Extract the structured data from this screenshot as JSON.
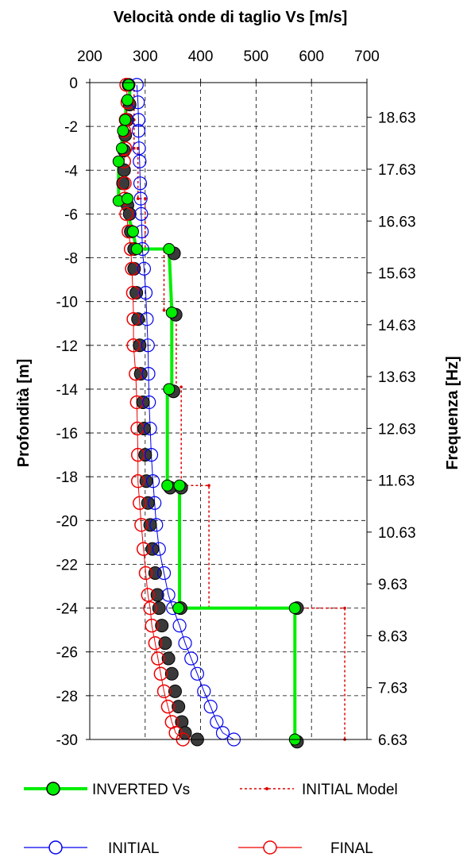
{
  "chart_data": {
    "type": "scatter",
    "title": "Velocità onde di taglio Vs [m/s]",
    "xlabel": "Velocità onde di taglio Vs [m/s]",
    "ylabel": "Profondità [m]",
    "y2label": "Frequenza [Hz]",
    "xlim": [
      200,
      700
    ],
    "ylim": [
      -30,
      0
    ],
    "x_ticks": [
      200,
      300,
      400,
      500,
      600,
      700
    ],
    "y_ticks": [
      0,
      -2,
      -4,
      -6,
      -8,
      -10,
      -12,
      -14,
      -16,
      -18,
      -20,
      -22,
      -24,
      -26,
      -28,
      -30
    ],
    "y2_ticks": [
      18.63,
      17.63,
      16.63,
      15.63,
      14.63,
      13.63,
      12.63,
      11.63,
      10.63,
      9.63,
      8.63,
      7.63,
      6.63
    ],
    "y2lim": [
      6.63,
      19.3
    ],
    "grid": true,
    "inverted_vs": {
      "name": "INVERTED Vs",
      "color": "#00ee00",
      "points": [
        [
          270,
          -0.1
        ],
        [
          268,
          -0.8
        ],
        [
          264,
          -1.7
        ],
        [
          260,
          -2.2
        ],
        [
          258,
          -3.0
        ],
        [
          252,
          -3.6
        ],
        [
          252,
          -5.4
        ],
        [
          268,
          -5.3
        ],
        [
          278,
          -6.8
        ],
        [
          285,
          -7.6
        ],
        [
          343,
          -7.6
        ],
        [
          348,
          -10.5
        ],
        [
          343,
          -14.0
        ],
        [
          340,
          -18.4
        ],
        [
          362,
          -18.4
        ],
        [
          360,
          -24.0
        ],
        [
          570,
          -24.0
        ],
        [
          570,
          -30.0
        ]
      ],
      "path": [
        [
          272,
          0
        ],
        [
          272,
          -0.9
        ],
        [
          265,
          -0.9
        ],
        [
          265,
          -1.7
        ],
        [
          258,
          -1.7
        ],
        [
          258,
          -2.2
        ],
        [
          258,
          -3.6
        ],
        [
          252,
          -3.6
        ],
        [
          252,
          -5.3
        ],
        [
          265,
          -5.3
        ],
        [
          268,
          -6.0
        ],
        [
          278,
          -6.8
        ],
        [
          284,
          -7.6
        ],
        [
          343,
          -7.6
        ],
        [
          348,
          -10.4
        ],
        [
          348,
          -14.0
        ],
        [
          340,
          -14.0
        ],
        [
          340,
          -18.4
        ],
        [
          362,
          -18.4
        ],
        [
          362,
          -24.0
        ],
        [
          570,
          -24.0
        ],
        [
          570,
          -30.0
        ]
      ]
    },
    "initial_model": {
      "name": "INITIAL Model",
      "color": "#dd0000",
      "path": [
        [
          280,
          -0.1
        ],
        [
          280,
          -1.7
        ],
        [
          280,
          -3.0
        ],
        [
          287,
          -3.0
        ],
        [
          287,
          -5.3
        ],
        [
          300,
          -5.3
        ],
        [
          300,
          -7.6
        ],
        [
          334,
          -7.6
        ],
        [
          334,
          -10.4
        ],
        [
          356,
          -10.4
        ],
        [
          356,
          -13.9
        ],
        [
          365,
          -13.9
        ],
        [
          365,
          -18.4
        ],
        [
          415,
          -18.4
        ],
        [
          415,
          -24.0
        ],
        [
          660,
          -24.0
        ],
        [
          660,
          -30.0
        ]
      ]
    },
    "initial": {
      "name": "INITIAL",
      "color": "#0000ee",
      "points": [
        [
          285,
          -0.1
        ],
        [
          287,
          -0.9
        ],
        [
          288,
          -1.7
        ],
        [
          288,
          -2.2
        ],
        [
          289,
          -3.0
        ],
        [
          290,
          -3.6
        ],
        [
          291,
          -4.6
        ],
        [
          292,
          -5.3
        ],
        [
          293,
          -6.0
        ],
        [
          294,
          -6.8
        ],
        [
          295,
          -7.6
        ],
        [
          298,
          -8.5
        ],
        [
          301,
          -9.6
        ],
        [
          303,
          -10.8
        ],
        [
          305,
          -12.0
        ],
        [
          306,
          -13.3
        ],
        [
          307,
          -14.6
        ],
        [
          309,
          -15.8
        ],
        [
          311,
          -17.0
        ],
        [
          314,
          -18.2
        ],
        [
          317,
          -19.2
        ],
        [
          320,
          -20.2
        ],
        [
          325,
          -21.3
        ],
        [
          334,
          -22.4
        ],
        [
          342,
          -23.4
        ],
        [
          350,
          -24.0
        ],
        [
          362,
          -24.8
        ],
        [
          372,
          -25.6
        ],
        [
          383,
          -26.3
        ],
        [
          394,
          -27.0
        ],
        [
          406,
          -27.8
        ],
        [
          418,
          -28.5
        ],
        [
          429,
          -29.2
        ],
        [
          440,
          -29.7
        ],
        [
          460,
          -30.0
        ]
      ]
    },
    "final": {
      "name": "FINAL",
      "color": "#ee0000",
      "points": [
        [
          266,
          -0.1
        ],
        [
          268,
          -0.9
        ],
        [
          265,
          -1.7
        ],
        [
          262,
          -2.2
        ],
        [
          264,
          -3.0
        ],
        [
          262,
          -3.6
        ],
        [
          263,
          -4.6
        ],
        [
          263,
          -5.3
        ],
        [
          266,
          -6.0
        ],
        [
          270,
          -6.8
        ],
        [
          274,
          -7.6
        ],
        [
          276,
          -8.5
        ],
        [
          278,
          -9.6
        ],
        [
          279,
          -10.8
        ],
        [
          279,
          -12.0
        ],
        [
          283,
          -13.3
        ],
        [
          285,
          -14.6
        ],
        [
          286,
          -15.8
        ],
        [
          287,
          -17.0
        ],
        [
          287,
          -18.2
        ],
        [
          290,
          -19.2
        ],
        [
          293,
          -20.2
        ],
        [
          297,
          -21.3
        ],
        [
          301,
          -22.4
        ],
        [
          305,
          -23.4
        ],
        [
          309,
          -24.0
        ],
        [
          312,
          -24.8
        ],
        [
          318,
          -25.6
        ],
        [
          323,
          -26.3
        ],
        [
          328,
          -27.0
        ],
        [
          334,
          -27.8
        ],
        [
          341,
          -28.5
        ],
        [
          348,
          -29.2
        ],
        [
          355,
          -29.7
        ],
        [
          368,
          -30.0
        ]
      ]
    },
    "dark_markers": {
      "color": "#3a3a3a",
      "points": [
        [
          270,
          -0.1
        ],
        [
          272,
          -1.0
        ],
        [
          268,
          -1.7
        ],
        [
          264,
          -2.4
        ],
        [
          262,
          -3.1
        ],
        [
          262,
          -4.0
        ],
        [
          260,
          -4.6
        ],
        [
          268,
          -5.6
        ],
        [
          272,
          -6.0
        ],
        [
          274,
          -6.8
        ],
        [
          280,
          -7.6
        ],
        [
          280,
          -8.5
        ],
        [
          284,
          -9.6
        ],
        [
          287,
          -10.8
        ],
        [
          290,
          -12.0
        ],
        [
          292,
          -13.3
        ],
        [
          296,
          -14.6
        ],
        [
          298,
          -15.8
        ],
        [
          300,
          -17.0
        ],
        [
          302,
          -18.2
        ],
        [
          305,
          -19.2
        ],
        [
          309,
          -20.2
        ],
        [
          313,
          -21.3
        ],
        [
          318,
          -22.4
        ],
        [
          322,
          -23.4
        ],
        [
          325,
          -24.0
        ],
        [
          330,
          -24.8
        ],
        [
          336,
          -25.6
        ],
        [
          342,
          -26.3
        ],
        [
          348,
          -27.0
        ],
        [
          354,
          -27.8
        ],
        [
          360,
          -28.5
        ],
        [
          366,
          -29.2
        ],
        [
          372,
          -29.7
        ],
        [
          394,
          -30.0
        ],
        [
          352,
          -7.8
        ],
        [
          355,
          -10.6
        ],
        [
          351,
          -14.1
        ],
        [
          345,
          -18.5
        ],
        [
          365,
          -18.5
        ],
        [
          364,
          -24.0
        ],
        [
          574,
          -24.0
        ],
        [
          574,
          -30.1
        ]
      ]
    },
    "legend": {
      "inverted_vs": "INVERTED Vs",
      "initial_model": "INITIAL Model",
      "initial": "INITIAL",
      "final": "FINAL"
    }
  }
}
